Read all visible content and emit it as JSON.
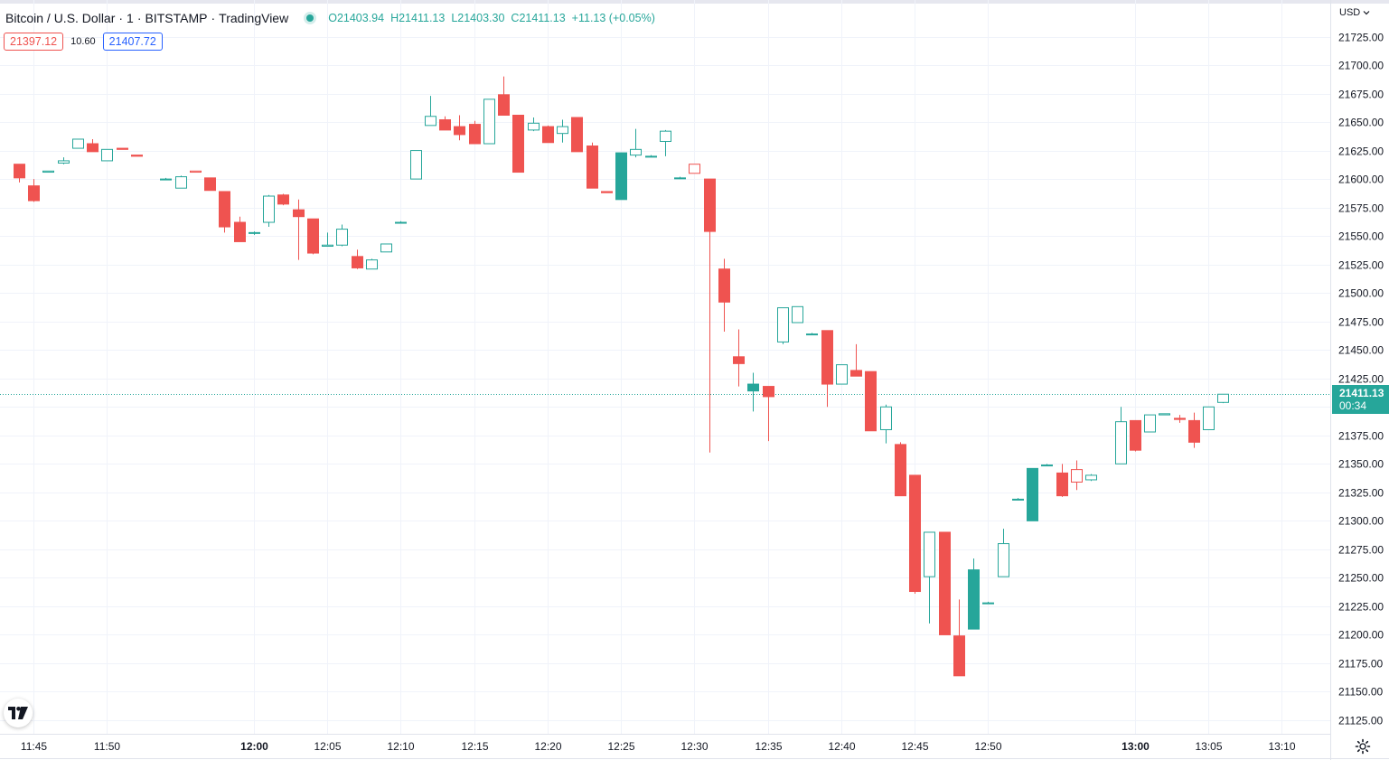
{
  "header": {
    "symbol": "Bitcoin / U.S. Dollar",
    "interval": "1",
    "exchange": "BITSTAMP",
    "source": "TradingView",
    "ohlc": {
      "open_label": "O",
      "open": "21403.94",
      "high_label": "H",
      "high": "21411.13",
      "low_label": "L",
      "low": "21403.30",
      "close_label": "C",
      "close": "21411.13",
      "change": "+11.13 (+0.05%)"
    },
    "sell_price": "21397.12",
    "spread": "10.60",
    "buy_price": "21407.72"
  },
  "price_axis": {
    "currency": "USD",
    "last_price": "21411.13",
    "countdown": "00:34"
  },
  "colors": {
    "up": "#26a69a",
    "down": "#ef5350",
    "grid": "#f0f3fa",
    "axis_text": "#131722",
    "buy": "#2962ff"
  },
  "icons": [
    "tradingview-logo-icon",
    "chevron-down-icon",
    "settings-gear-icon",
    "status-dot-icon"
  ],
  "chart_data": {
    "type": "candlestick",
    "timeframe_minutes": 1,
    "y_ticks": [
      21125,
      21150,
      21175,
      21200,
      21225,
      21250,
      21275,
      21300,
      21325,
      21350,
      21375,
      21400,
      21425,
      21450,
      21475,
      21500,
      21525,
      21550,
      21575,
      21600,
      21625,
      21650,
      21675,
      21700,
      21725
    ],
    "y_range": [
      21113,
      21738
    ],
    "x_ticks": [
      {
        "label": "11:45",
        "bold": false
      },
      {
        "label": "11:50",
        "bold": false
      },
      {
        "label": "12:00",
        "bold": true
      },
      {
        "label": "12:05",
        "bold": false
      },
      {
        "label": "12:10",
        "bold": false
      },
      {
        "label": "12:15",
        "bold": false
      },
      {
        "label": "12:20",
        "bold": false
      },
      {
        "label": "12:25",
        "bold": false
      },
      {
        "label": "12:30",
        "bold": false
      },
      {
        "label": "12:35",
        "bold": false
      },
      {
        "label": "12:40",
        "bold": false
      },
      {
        "label": "12:45",
        "bold": false
      },
      {
        "label": "12:50",
        "bold": false
      },
      {
        "label": "13:00",
        "bold": true
      },
      {
        "label": "13:05",
        "bold": false
      },
      {
        "label": "13:10",
        "bold": false
      }
    ],
    "last_price": 21411.13,
    "candles": [
      {
        "t": "11:44",
        "o": 21613,
        "h": 21613,
        "l": 21597,
        "c": 21601
      },
      {
        "t": "11:45",
        "o": 21594,
        "h": 21600,
        "l": 21580,
        "c": 21581
      },
      {
        "t": "11:46",
        "o": 21606,
        "h": 21607,
        "l": 21606,
        "c": 21607
      },
      {
        "t": "11:47",
        "o": 21614,
        "h": 21619,
        "l": 21613,
        "c": 21616
      },
      {
        "t": "11:48",
        "o": 21627,
        "h": 21635,
        "l": 21627,
        "c": 21635
      },
      {
        "t": "11:49",
        "o": 21631,
        "h": 21635,
        "l": 21624,
        "c": 21624
      },
      {
        "t": "11:50",
        "o": 21616,
        "h": 21626,
        "l": 21616,
        "c": 21626
      },
      {
        "t": "11:51",
        "o": 21627,
        "h": 21627,
        "l": 21626,
        "c": 21626
      },
      {
        "t": "11:52",
        "o": 21621,
        "h": 21621,
        "l": 21620,
        "c": 21620
      },
      {
        "t": "11:54",
        "o": 21600,
        "h": 21601,
        "l": 21599,
        "c": 21600
      },
      {
        "t": "11:55",
        "o": 21592,
        "h": 21603,
        "l": 21592,
        "c": 21602
      },
      {
        "t": "11:56",
        "o": 21607,
        "h": 21607,
        "l": 21606,
        "c": 21606
      },
      {
        "t": "11:57",
        "o": 21601,
        "h": 21601,
        "l": 21590,
        "c": 21590
      },
      {
        "t": "11:58",
        "o": 21589,
        "h": 21589,
        "l": 21553,
        "c": 21558
      },
      {
        "t": "11:59",
        "o": 21562,
        "h": 21567,
        "l": 21545,
        "c": 21545
      },
      {
        "t": "12:00",
        "o": 21553,
        "h": 21554,
        "l": 21551,
        "c": 21553
      },
      {
        "t": "12:01",
        "o": 21562,
        "h": 21586,
        "l": 21558,
        "c": 21585
      },
      {
        "t": "12:02",
        "o": 21586,
        "h": 21587,
        "l": 21577,
        "c": 21578
      },
      {
        "t": "12:03",
        "o": 21573,
        "h": 21582,
        "l": 21529,
        "c": 21567
      },
      {
        "t": "12:04",
        "o": 21565,
        "h": 21565,
        "l": 21534,
        "c": 21535
      },
      {
        "t": "12:05",
        "o": 21541,
        "h": 21553,
        "l": 21541,
        "c": 21542
      },
      {
        "t": "12:06",
        "o": 21542,
        "h": 21560,
        "l": 21541,
        "c": 21556
      },
      {
        "t": "12:07",
        "o": 21532,
        "h": 21538,
        "l": 21521,
        "c": 21522
      },
      {
        "t": "12:08",
        "o": 21521,
        "h": 21530,
        "l": 21521,
        "c": 21529
      },
      {
        "t": "12:09",
        "o": 21536,
        "h": 21543,
        "l": 21536,
        "c": 21543
      },
      {
        "t": "12:10",
        "o": 21562,
        "h": 21563,
        "l": 21561,
        "c": 21562
      },
      {
        "t": "12:11",
        "o": 21600,
        "h": 21625,
        "l": 21600,
        "c": 21625
      },
      {
        "t": "12:12",
        "o": 21647,
        "h": 21673,
        "l": 21647,
        "c": 21655
      },
      {
        "t": "12:13",
        "o": 21652,
        "h": 21655,
        "l": 21643,
        "c": 21643
      },
      {
        "t": "12:14",
        "o": 21646,
        "h": 21656,
        "l": 21634,
        "c": 21639
      },
      {
        "t": "12:15",
        "o": 21648,
        "h": 21651,
        "l": 21631,
        "c": 21631
      },
      {
        "t": "12:16",
        "o": 21631,
        "h": 21670,
        "l": 21631,
        "c": 21670
      },
      {
        "t": "12:17",
        "o": 21674,
        "h": 21690,
        "l": 21656,
        "c": 21656
      },
      {
        "t": "12:18",
        "o": 21656,
        "h": 21656,
        "l": 21606,
        "c": 21606
      },
      {
        "t": "12:19",
        "o": 21643,
        "h": 21654,
        "l": 21642,
        "c": 21649
      },
      {
        "t": "12:20",
        "o": 21646,
        "h": 21647,
        "l": 21632,
        "c": 21632
      },
      {
        "t": "12:21",
        "o": 21640,
        "h": 21652,
        "l": 21632,
        "c": 21646
      },
      {
        "t": "12:22",
        "o": 21654,
        "h": 21654,
        "l": 21624,
        "c": 21624
      },
      {
        "t": "12:23",
        "o": 21629,
        "h": 21632,
        "l": 21592,
        "c": 21592
      },
      {
        "t": "12:24",
        "o": 21589,
        "h": 21589,
        "l": 21588,
        "c": 21588
      },
      {
        "t": "12:25",
        "o": 21582,
        "h": 21623,
        "l": 21582,
        "c": 21623
      },
      {
        "t": "12:26",
        "o": 21621,
        "h": 21644,
        "l": 21619,
        "c": 21626
      },
      {
        "t": "12:27",
        "o": 21620,
        "h": 21621,
        "l": 21620,
        "c": 21620
      },
      {
        "t": "12:28",
        "o": 21633,
        "h": 21643,
        "l": 21620,
        "c": 21642
      },
      {
        "t": "12:29",
        "o": 21601,
        "h": 21602,
        "l": 21600,
        "c": 21601
      },
      {
        "t": "12:30",
        "o": 21613,
        "h": 21613,
        "l": 21605,
        "c": 21605
      },
      {
        "t": "12:31",
        "o": 21600,
        "h": 21600,
        "l": 21360,
        "c": 21554
      },
      {
        "t": "12:32",
        "o": 21521,
        "h": 21530,
        "l": 21466,
        "c": 21492
      },
      {
        "t": "12:33",
        "o": 21444,
        "h": 21468,
        "l": 21418,
        "c": 21438
      },
      {
        "t": "12:34",
        "o": 21414,
        "h": 21430,
        "l": 21396,
        "c": 21420
      },
      {
        "t": "12:35",
        "o": 21418,
        "h": 21418,
        "l": 21370,
        "c": 21409
      },
      {
        "t": "12:36",
        "o": 21457,
        "h": 21487,
        "l": 21455,
        "c": 21487
      },
      {
        "t": "12:37",
        "o": 21474,
        "h": 21488,
        "l": 21474,
        "c": 21488
      },
      {
        "t": "12:38",
        "o": 21464,
        "h": 21465,
        "l": 21463,
        "c": 21464
      },
      {
        "t": "12:39",
        "o": 21467,
        "h": 21467,
        "l": 21400,
        "c": 21420
      },
      {
        "t": "12:40",
        "o": 21420,
        "h": 21437,
        "l": 21420,
        "c": 21437
      },
      {
        "t": "12:41",
        "o": 21432,
        "h": 21455,
        "l": 21427,
        "c": 21427
      },
      {
        "t": "12:42",
        "o": 21431,
        "h": 21431,
        "l": 21379,
        "c": 21379
      },
      {
        "t": "12:43",
        "o": 21380,
        "h": 21402,
        "l": 21368,
        "c": 21400
      },
      {
        "t": "12:44",
        "o": 21367,
        "h": 21369,
        "l": 21322,
        "c": 21322
      },
      {
        "t": "12:45",
        "o": 21340,
        "h": 21340,
        "l": 21236,
        "c": 21238
      },
      {
        "t": "12:46",
        "o": 21251,
        "h": 21290,
        "l": 21210,
        "c": 21290
      },
      {
        "t": "12:47",
        "o": 21290,
        "h": 21290,
        "l": 21200,
        "c": 21200
      },
      {
        "t": "12:48",
        "o": 21199,
        "h": 21231,
        "l": 21164,
        "c": 21164
      },
      {
        "t": "12:49",
        "o": 21205,
        "h": 21267,
        "l": 21205,
        "c": 21257
      },
      {
        "t": "12:50",
        "o": 21228,
        "h": 21229,
        "l": 21227,
        "c": 21228
      },
      {
        "t": "12:51",
        "o": 21251,
        "h": 21293,
        "l": 21251,
        "c": 21280
      },
      {
        "t": "12:52",
        "o": 21319,
        "h": 21320,
        "l": 21318,
        "c": 21319
      },
      {
        "t": "12:53",
        "o": 21300,
        "h": 21346,
        "l": 21300,
        "c": 21346
      },
      {
        "t": "12:54",
        "o": 21349,
        "h": 21350,
        "l": 21348,
        "c": 21349
      },
      {
        "t": "12:55",
        "o": 21342,
        "h": 21350,
        "l": 21321,
        "c": 21322
      },
      {
        "t": "12:56",
        "o": 21345,
        "h": 21353,
        "l": 21327,
        "c": 21334
      },
      {
        "t": "12:57",
        "o": 21336,
        "h": 21341,
        "l": 21335,
        "c": 21340
      },
      {
        "t": "12:59",
        "o": 21350,
        "h": 21400,
        "l": 21350,
        "c": 21387
      },
      {
        "t": "13:00",
        "o": 21388,
        "h": 21388,
        "l": 21361,
        "c": 21362
      },
      {
        "t": "13:01",
        "o": 21378,
        "h": 21393,
        "l": 21378,
        "c": 21393
      },
      {
        "t": "13:02",
        "o": 21393,
        "h": 21394,
        "l": 21393,
        "c": 21394
      },
      {
        "t": "13:03",
        "o": 21390,
        "h": 21393,
        "l": 21386,
        "c": 21389
      },
      {
        "t": "13:04",
        "o": 21388,
        "h": 21395,
        "l": 21364,
        "c": 21369
      },
      {
        "t": "13:05",
        "o": 21380,
        "h": 21400,
        "l": 21380,
        "c": 21400
      },
      {
        "t": "13:06",
        "o": 21403.94,
        "h": 21411.13,
        "l": 21403.3,
        "c": 21411.13
      }
    ]
  }
}
